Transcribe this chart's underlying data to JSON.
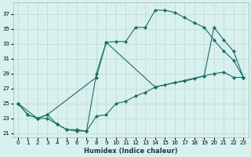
{
  "bg_color": "#d8f0ee",
  "grid_color": "#c0d8d4",
  "line_color": "#1a7060",
  "xlabel": "Humidex (Indice chaleur)",
  "xlim": [
    -0.5,
    23.5
  ],
  "ylim": [
    20.5,
    38.5
  ],
  "yticks": [
    21,
    23,
    25,
    27,
    29,
    31,
    33,
    35,
    37
  ],
  "xticks": [
    0,
    1,
    2,
    3,
    4,
    5,
    6,
    7,
    8,
    9,
    10,
    11,
    12,
    13,
    14,
    15,
    16,
    17,
    18,
    19,
    20,
    21,
    22,
    23
  ],
  "curve1_x": [
    0,
    1,
    2,
    3,
    4,
    5,
    6,
    7,
    8,
    9,
    10,
    11,
    12,
    13,
    14,
    15,
    16,
    17,
    18,
    19,
    20,
    21,
    22,
    23
  ],
  "curve1_y": [
    25.0,
    23.5,
    23.0,
    23.0,
    22.2,
    21.5,
    21.3,
    21.3,
    29.0,
    33.2,
    33.3,
    33.3,
    35.2,
    35.2,
    37.5,
    37.5,
    37.2,
    36.5,
    35.8,
    35.2,
    33.5,
    32.0,
    30.8,
    28.5
  ],
  "curve2_x": [
    0,
    1,
    2,
    3,
    4,
    5,
    6,
    7,
    8,
    9,
    10,
    11,
    12,
    13,
    14,
    15,
    16,
    17,
    18,
    19,
    20,
    21,
    22,
    23
  ],
  "curve2_y": [
    25.0,
    23.5,
    23.0,
    23.5,
    22.2,
    21.5,
    21.5,
    21.3,
    23.3,
    23.5,
    25.0,
    25.3,
    26.0,
    26.5,
    27.2,
    27.5,
    27.8,
    28.0,
    28.3,
    28.7,
    29.0,
    29.2,
    28.5,
    28.5
  ],
  "curve3_x": [
    0,
    2,
    3,
    8,
    9,
    14,
    19,
    20,
    21,
    22,
    23
  ],
  "curve3_y": [
    25.0,
    23.0,
    23.5,
    28.5,
    33.2,
    27.2,
    28.7,
    35.2,
    33.5,
    32.0,
    28.5
  ]
}
